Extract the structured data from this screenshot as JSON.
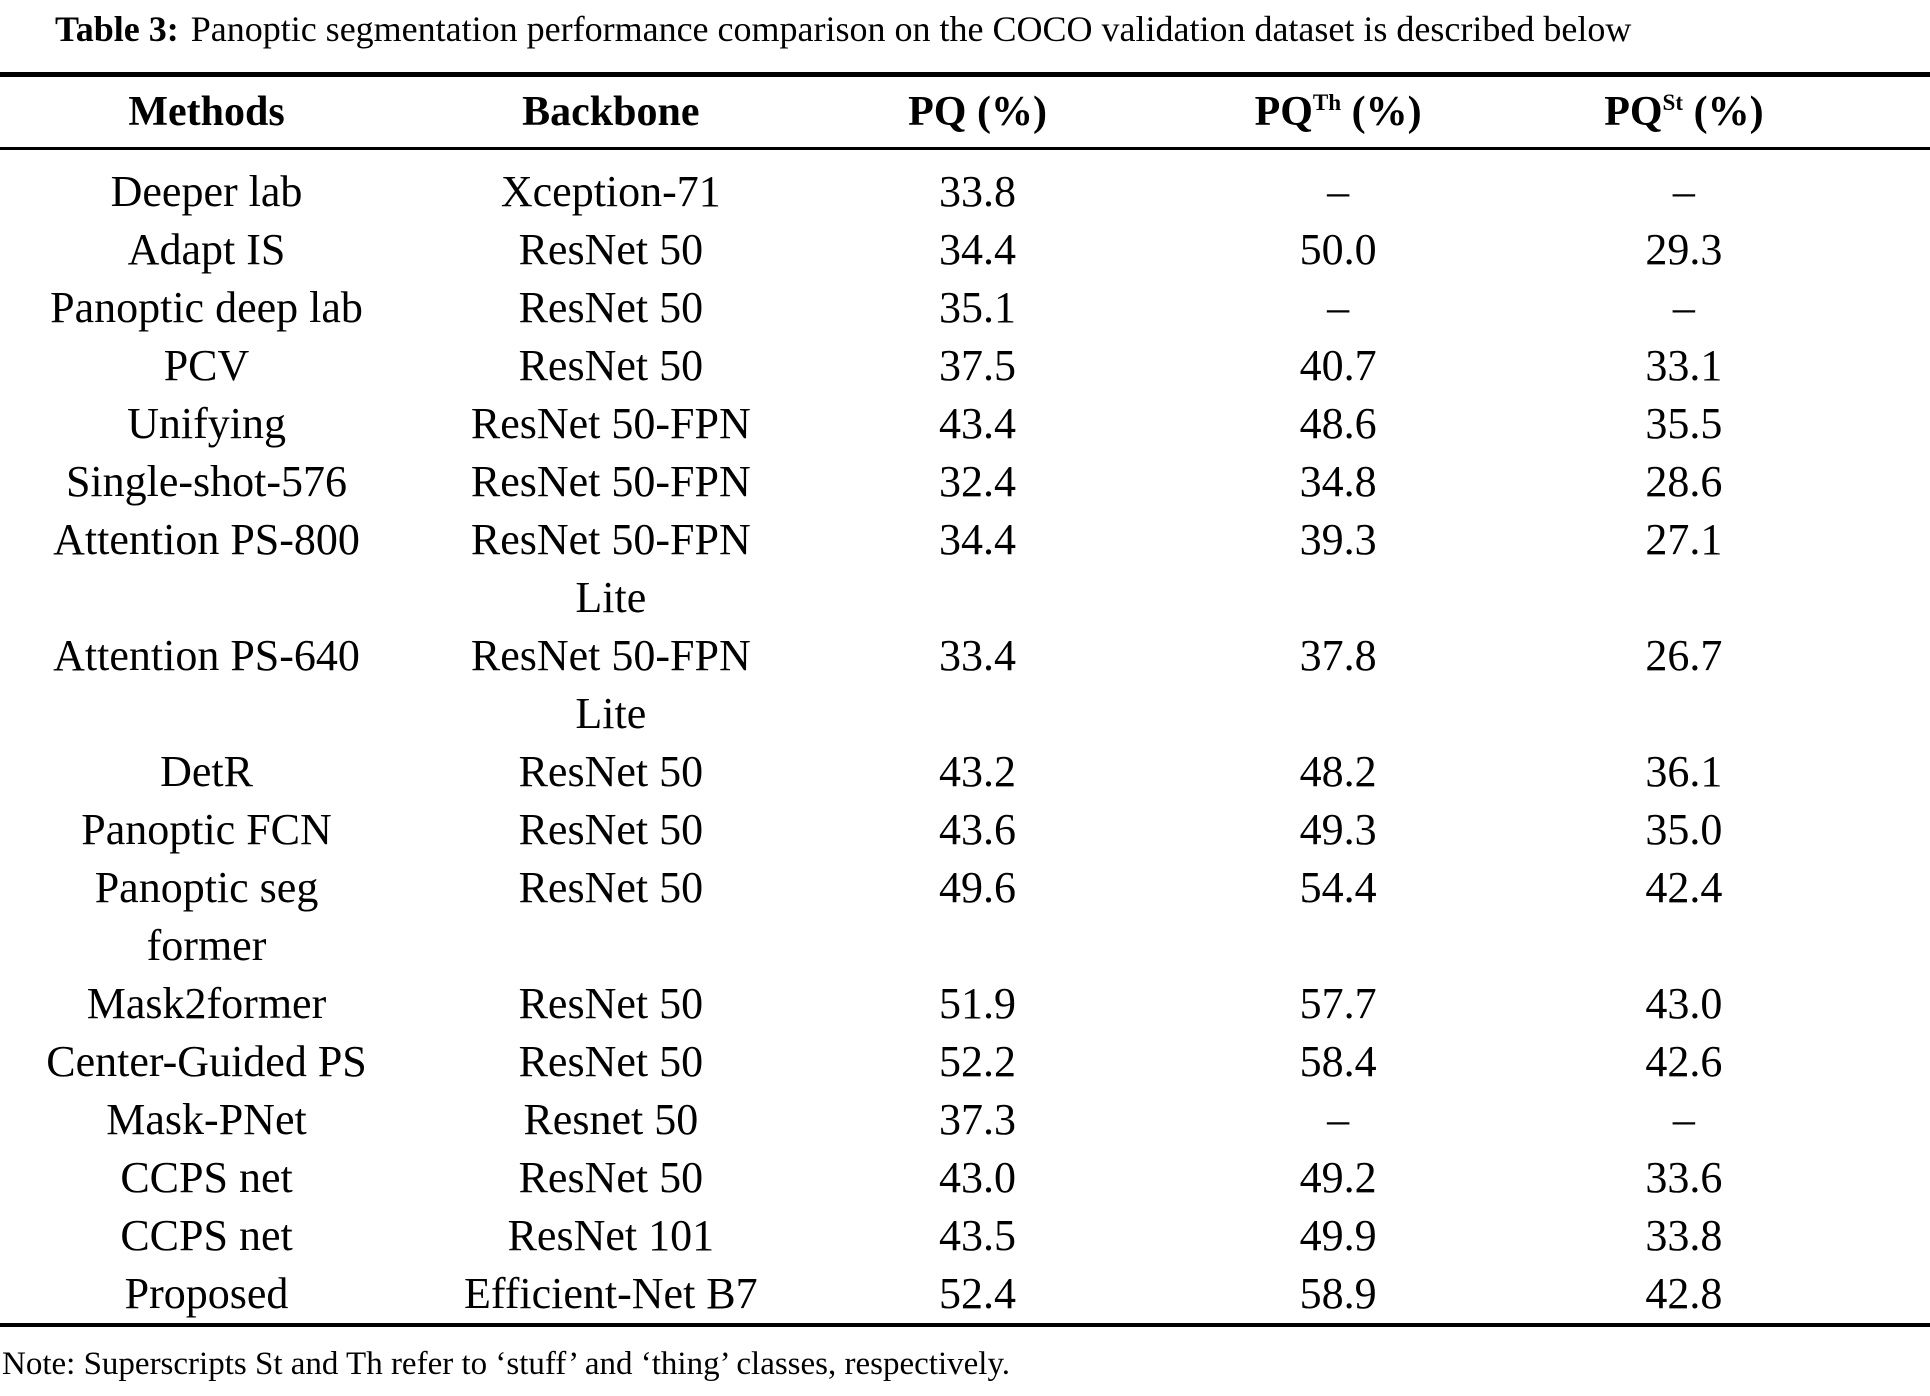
{
  "title": {
    "label": "Table 3:",
    "text": "Panoptic segmentation performance comparison on the COCO validation dataset is described below"
  },
  "table": {
    "headers": [
      {
        "base": "Methods",
        "sup": "",
        "rest": ""
      },
      {
        "base": "Backbone",
        "sup": "",
        "rest": ""
      },
      {
        "base": "PQ",
        "sup": "",
        "rest": " (%)"
      },
      {
        "base": "PQ",
        "sup": "Th",
        "rest": " (%)"
      },
      {
        "base": "PQ",
        "sup": "St",
        "rest": " (%)"
      }
    ],
    "rows": [
      {
        "method": "Deeper lab",
        "backbone": "Xception-71",
        "pq": "33.8",
        "pq_th": "–",
        "pq_st": "–"
      },
      {
        "method": "Adapt IS",
        "backbone": "ResNet 50",
        "pq": "34.4",
        "pq_th": "50.0",
        "pq_st": "29.3"
      },
      {
        "method": "Panoptic deep lab",
        "backbone": "ResNet 50",
        "pq": "35.1",
        "pq_th": "–",
        "pq_st": "–"
      },
      {
        "method": "PCV",
        "backbone": "ResNet 50",
        "pq": "37.5",
        "pq_th": "40.7",
        "pq_st": "33.1"
      },
      {
        "method": "Unifying",
        "backbone": "ResNet 50-FPN",
        "pq": "43.4",
        "pq_th": "48.6",
        "pq_st": "35.5"
      },
      {
        "method": "Single-shot-576",
        "backbone": "ResNet 50-FPN",
        "pq": "32.4",
        "pq_th": "34.8",
        "pq_st": "28.6"
      },
      {
        "method": "Attention PS-800",
        "backbone": "ResNet 50-FPN\nLite",
        "pq": "34.4",
        "pq_th": "39.3",
        "pq_st": "27.1"
      },
      {
        "method": "Attention PS-640",
        "backbone": "ResNet 50-FPN\nLite",
        "pq": "33.4",
        "pq_th": "37.8",
        "pq_st": "26.7"
      },
      {
        "method": "DetR",
        "backbone": "ResNet 50",
        "pq": "43.2",
        "pq_th": "48.2",
        "pq_st": "36.1"
      },
      {
        "method": "Panoptic FCN",
        "backbone": "ResNet 50",
        "pq": "43.6",
        "pq_th": "49.3",
        "pq_st": "35.0"
      },
      {
        "method": "Panoptic seg\nformer",
        "backbone": "ResNet 50",
        "pq": "49.6",
        "pq_th": "54.4",
        "pq_st": "42.4"
      },
      {
        "method": "Mask2former",
        "backbone": "ResNet 50",
        "pq": "51.9",
        "pq_th": "57.7",
        "pq_st": "43.0"
      },
      {
        "method": "Center-Guided PS",
        "backbone": "ResNet 50",
        "pq": "52.2",
        "pq_th": "58.4",
        "pq_st": "42.6"
      },
      {
        "method": "Mask-PNet",
        "backbone": "Resnet 50",
        "pq": "37.3",
        "pq_th": "–",
        "pq_st": "–"
      },
      {
        "method": "CCPS net",
        "backbone": "ResNet 50",
        "pq": "43.0",
        "pq_th": "49.2",
        "pq_st": "33.6"
      },
      {
        "method": "CCPS net",
        "backbone": "ResNet 101",
        "pq": "43.5",
        "pq_th": "49.9",
        "pq_st": "33.8"
      },
      {
        "method": "Proposed",
        "backbone": "Efficient-Net B7",
        "pq": "52.4",
        "pq_th": "58.9",
        "pq_st": "42.8"
      }
    ],
    "note": "Note: Superscripts St and Th refer to ‘stuff’ and ‘thing’ classes, respectively."
  }
}
